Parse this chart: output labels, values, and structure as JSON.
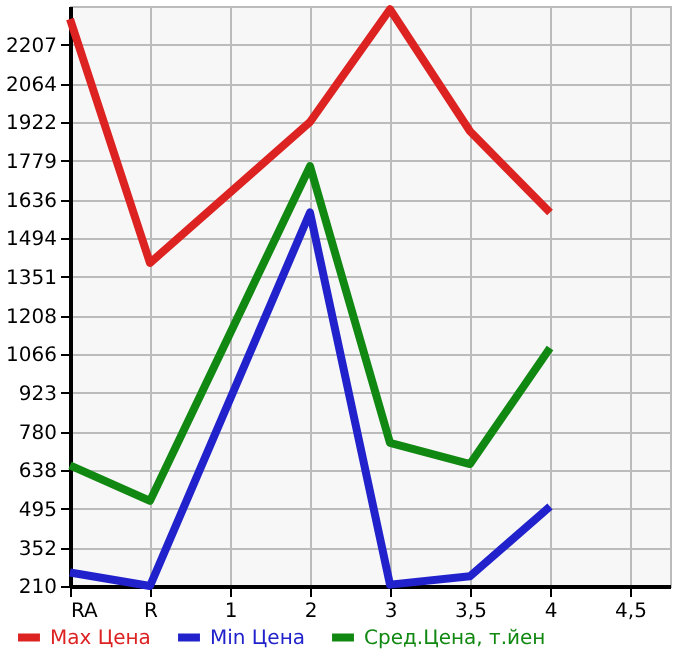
{
  "chart_data": {
    "type": "line",
    "categories": [
      "RA",
      "R",
      "1",
      "2",
      "3",
      "3,5",
      "4",
      "4,5"
    ],
    "series": [
      {
        "name": "Max Цена",
        "color": "#dd2222",
        "values": [
          2302,
          1402,
          null,
          1922,
          2338,
          1888,
          1588,
          null
        ]
      },
      {
        "name": "Min Цена",
        "color": "#2222cc",
        "values": [
          260,
          210,
          null,
          1588,
          215,
          246,
          503,
          null
        ]
      },
      {
        "name": "Сред.Цена, т.йен",
        "color": "#118811",
        "values": [
          655,
          524,
          null,
          1759,
          738,
          660,
          1088,
          null
        ]
      }
    ],
    "ylim": [
      210,
      2350
    ],
    "yticks": [
      210,
      352,
      495,
      638,
      780,
      923,
      1066,
      1208,
      1351,
      1494,
      1636,
      1779,
      1922,
      2064,
      2207
    ],
    "grid": true,
    "legend": "bottom",
    "marker": "none",
    "line_style": "solid"
  }
}
